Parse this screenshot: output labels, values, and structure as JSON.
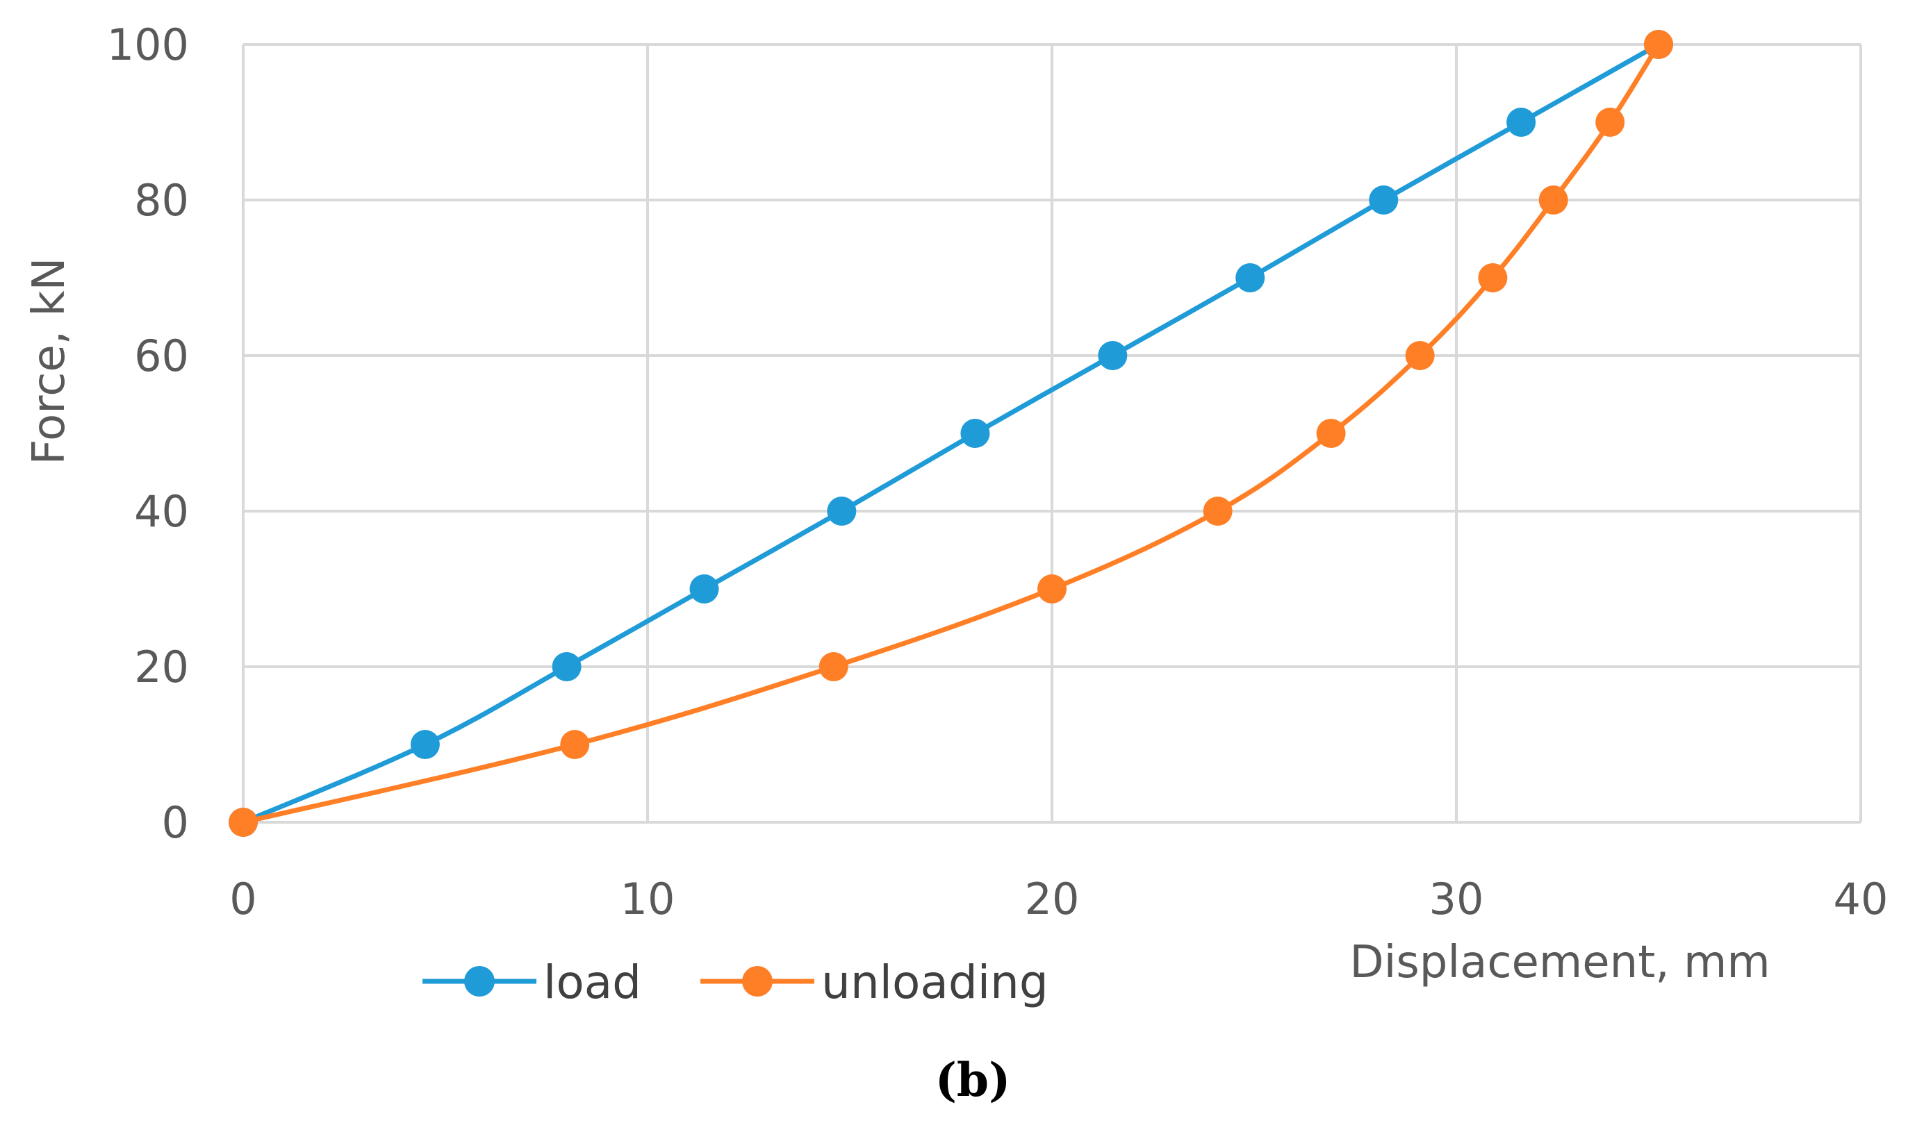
{
  "chart_data": {
    "type": "line",
    "title": "",
    "xlabel": "Displacement, mm",
    "ylabel": "Force, kN",
    "xlim": [
      0,
      40
    ],
    "ylim": [
      0,
      100
    ],
    "xticks": [
      0,
      10,
      20,
      30,
      40
    ],
    "yticks": [
      0,
      20,
      40,
      60,
      80,
      100
    ],
    "grid": true,
    "legend_position": "bottom",
    "series": [
      {
        "name": "load",
        "color": "#1f9bd7",
        "points": [
          {
            "x": 0,
            "y": 0
          },
          {
            "x": 4.5,
            "y": 10
          },
          {
            "x": 8.0,
            "y": 20
          },
          {
            "x": 11.4,
            "y": 30
          },
          {
            "x": 14.8,
            "y": 40
          },
          {
            "x": 18.1,
            "y": 50
          },
          {
            "x": 21.5,
            "y": 60
          },
          {
            "x": 24.9,
            "y": 70
          },
          {
            "x": 28.2,
            "y": 80
          },
          {
            "x": 31.6,
            "y": 90
          },
          {
            "x": 35.0,
            "y": 100
          }
        ]
      },
      {
        "name": "unloading",
        "color": "#ff7f27",
        "points": [
          {
            "x": 0,
            "y": 0
          },
          {
            "x": 8.2,
            "y": 10
          },
          {
            "x": 14.6,
            "y": 20
          },
          {
            "x": 20.0,
            "y": 30
          },
          {
            "x": 24.1,
            "y": 40
          },
          {
            "x": 26.9,
            "y": 50
          },
          {
            "x": 29.1,
            "y": 60
          },
          {
            "x": 30.9,
            "y": 70
          },
          {
            "x": 32.4,
            "y": 80
          },
          {
            "x": 33.8,
            "y": 90
          },
          {
            "x": 35.0,
            "y": 100
          }
        ]
      }
    ],
    "caption": "(b)"
  }
}
